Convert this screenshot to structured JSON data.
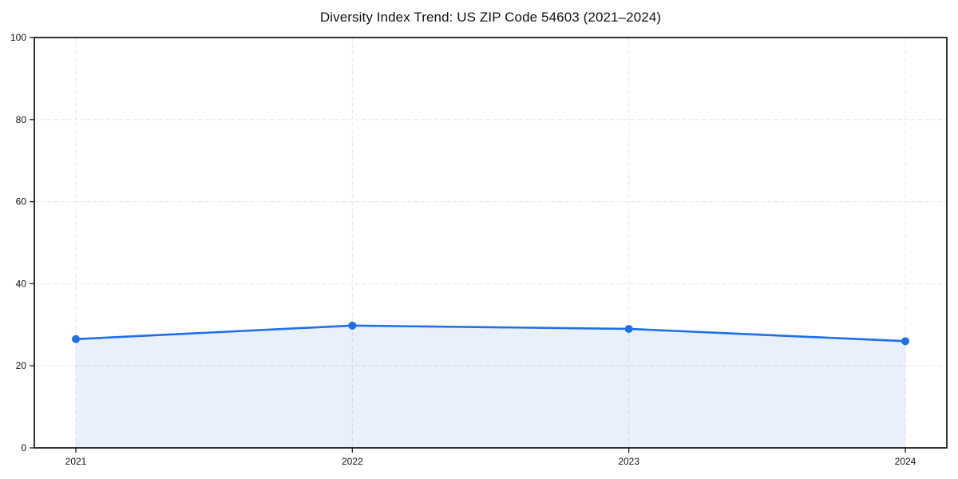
{
  "chart_data": {
    "type": "area",
    "title": "Diversity Index Trend: US ZIP Code 54603 (2021–2024)",
    "categories": [
      "2021",
      "2022",
      "2023",
      "2024"
    ],
    "series": [
      {
        "name": "Diversity Index",
        "values": [
          26.5,
          29.8,
          29.0,
          26.0
        ]
      }
    ],
    "xlabel": "",
    "ylabel": "",
    "ylim": [
      0,
      100
    ],
    "yticks": [
      0,
      20,
      40,
      60,
      80,
      100
    ],
    "grid": {
      "visible": true,
      "style": "dashed",
      "axes": "both"
    },
    "legend": "none",
    "marker": "circle",
    "colors": {
      "line": "#1f6fe6",
      "marker": "#1f6fe6",
      "fill": "rgba(31,111,230,0.10)",
      "grid": "#e4e4e4",
      "spine": "#000000",
      "background": "#ffffff"
    }
  }
}
